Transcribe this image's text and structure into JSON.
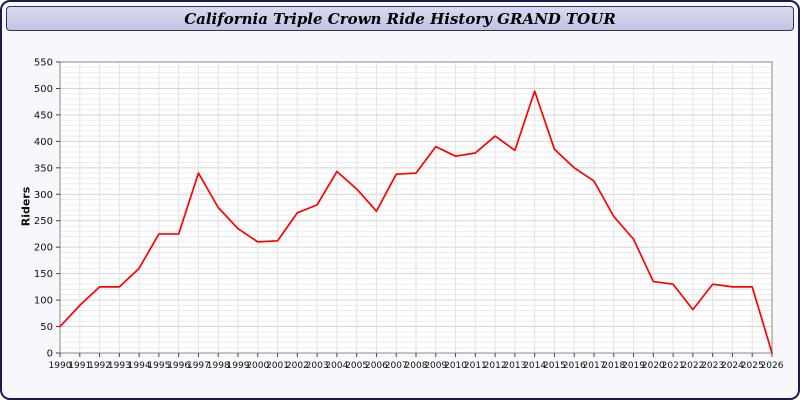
{
  "title": "California Triple Crown Ride History GRAND TOUR",
  "chart_data": {
    "type": "line",
    "title": "California Triple Crown Ride History GRAND TOUR",
    "xlabel": "",
    "ylabel": "Riders",
    "ylim": [
      0,
      550
    ],
    "ytick_step": 50,
    "ytick_minor_step": 10,
    "grid": true,
    "legend": "none",
    "x": [
      1990,
      1991,
      1992,
      1993,
      1994,
      1995,
      1996,
      1997,
      1998,
      1999,
      2000,
      2001,
      2002,
      2003,
      2004,
      2005,
      2006,
      2007,
      2008,
      2009,
      2010,
      2011,
      2012,
      2013,
      2014,
      2015,
      2016,
      2017,
      2018,
      2019,
      2020,
      2021,
      2022,
      2023,
      2024,
      2025,
      2026
    ],
    "series": [
      {
        "name": "Riders",
        "color": "#ff0000",
        "values": [
          50,
          90,
          125,
          125,
          160,
          225,
          225,
          340,
          275,
          235,
          210,
          212,
          265,
          280,
          343,
          310,
          268,
          338,
          340,
          390,
          372,
          378,
          410,
          383,
          495,
          385,
          350,
          325,
          258,
          215,
          135,
          130,
          82,
          130,
          125,
          125,
          0
        ]
      }
    ]
  },
  "colors": {
    "page_border": "#1b1b4f",
    "page_bg": "#f7f7fc",
    "title_bar_bg": "#ccccea",
    "plot_bg": "#ffffff",
    "grid_major": "#d4d4d4",
    "grid_minor": "#ececec",
    "grid_vertical": "#e2e2e2",
    "axis": "#888888",
    "line": "#ff0000"
  }
}
